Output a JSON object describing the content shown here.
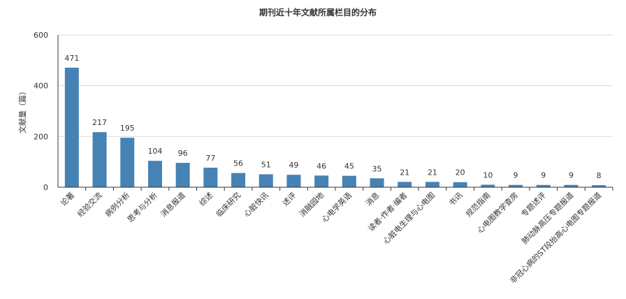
{
  "chart_data": {
    "type": "bar",
    "title": "期刊近十年文献所属栏目的分布",
    "xlabel": "",
    "ylabel": "文献量（篇）",
    "ylim": [
      0,
      600
    ],
    "yticks": [
      0,
      200,
      400,
      600
    ],
    "grid": true,
    "bar_color": "#4682b4",
    "categories": [
      "论著",
      "经验交流",
      "病例分析",
      "思考与分析",
      "消息报道",
      "综述",
      "临床研究",
      "心脏快讯",
      "述评",
      "消融园地",
      "心电学英语",
      "消息",
      "读者·作者·编者",
      "心脏电生理与心电图",
      "书讯",
      "规范指南",
      "心电图教学查房",
      "专题述评",
      "肺动脉高压专题报道",
      "非冠心病的ST段抬高心电图专题报道"
    ],
    "values": [
      471,
      217,
      195,
      104,
      96,
      77,
      56,
      51,
      49,
      46,
      45,
      35,
      21,
      21,
      20,
      10,
      9,
      9,
      9,
      8
    ]
  }
}
